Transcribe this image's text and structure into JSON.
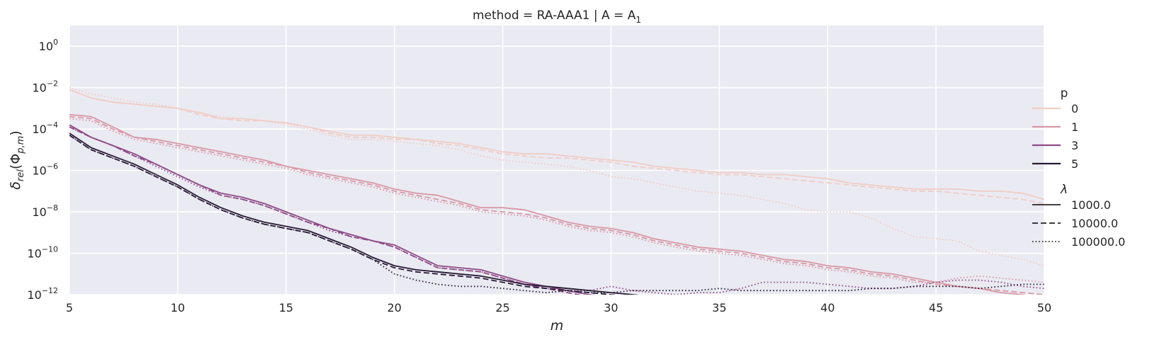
{
  "title": "method = RA-AAA1 | A = A",
  "title_sub": "1",
  "chart_data": {
    "type": "line",
    "title": "method = RA-AAA1 | A = A₁",
    "xlabel": "m",
    "ylabel": "δ_rel(Φ_{p,m})",
    "xlim": [
      5,
      50
    ],
    "ylim_log10": [
      -12,
      1
    ],
    "yscale": "log",
    "grid": true,
    "background": "#eaeaf2",
    "x_ticks": [
      5,
      10,
      15,
      20,
      25,
      30,
      35,
      40,
      45,
      50
    ],
    "y_ticks_log10": [
      0,
      -2,
      -4,
      -6,
      -8,
      -10,
      -12
    ],
    "legend_position": "right",
    "legend": {
      "hue_title": "p",
      "hue_levels": [
        {
          "label": "0",
          "color": "#f0cdc6"
        },
        {
          "label": "1",
          "color": "#d898a5"
        },
        {
          "label": "3",
          "color": "#8d4a85"
        },
        {
          "label": "5",
          "color": "#271b35"
        }
      ],
      "style_title": "λ",
      "style_levels": [
        {
          "label": "1000.0",
          "dash": "solid"
        },
        {
          "label": "10000.0",
          "dash": "dashed"
        },
        {
          "label": "100000.0",
          "dash": "dotted"
        }
      ]
    },
    "x": [
      5,
      6,
      7,
      8,
      9,
      10,
      11,
      12,
      13,
      14,
      15,
      16,
      17,
      18,
      19,
      20,
      21,
      22,
      23,
      24,
      25,
      26,
      27,
      28,
      29,
      30,
      31,
      32,
      33,
      34,
      35,
      36,
      37,
      38,
      39,
      40,
      41,
      42,
      43,
      44,
      45,
      46,
      47,
      48,
      49,
      50
    ],
    "series": [
      {
        "p": "0",
        "lambda": "1000.0",
        "log10_values": [
          -2.1,
          -2.5,
          -2.7,
          -2.8,
          -2.9,
          -3.0,
          -3.2,
          -3.5,
          -3.5,
          -3.6,
          -3.7,
          -3.9,
          -4.1,
          -4.3,
          -4.3,
          -4.4,
          -4.5,
          -4.6,
          -4.7,
          -4.9,
          -5.1,
          -5.2,
          -5.2,
          -5.3,
          -5.4,
          -5.5,
          -5.6,
          -5.8,
          -5.9,
          -6.0,
          -6.1,
          -6.1,
          -6.2,
          -6.2,
          -6.3,
          -6.4,
          -6.6,
          -6.7,
          -6.8,
          -6.9,
          -6.9,
          -6.9,
          -7.0,
          -7.0,
          -7.1,
          -7.4
        ]
      },
      {
        "p": "0",
        "lambda": "10000.0",
        "log10_values": [
          -2.1,
          -2.5,
          -2.7,
          -2.8,
          -2.9,
          -3.0,
          -3.3,
          -3.5,
          -3.6,
          -3.6,
          -3.7,
          -3.9,
          -4.2,
          -4.4,
          -4.4,
          -4.5,
          -4.5,
          -4.7,
          -4.8,
          -5.0,
          -5.2,
          -5.3,
          -5.4,
          -5.4,
          -5.5,
          -5.6,
          -5.8,
          -5.9,
          -6.0,
          -6.1,
          -6.2,
          -6.2,
          -6.3,
          -6.4,
          -6.5,
          -6.6,
          -6.7,
          -6.8,
          -6.9,
          -7.0,
          -7.0,
          -7.1,
          -7.2,
          -7.3,
          -7.4,
          -7.6
        ]
      },
      {
        "p": "0",
        "lambda": "100000.0",
        "log10_values": [
          -2.0,
          -2.3,
          -2.5,
          -2.7,
          -2.8,
          -3.0,
          -3.2,
          -3.4,
          -3.5,
          -3.6,
          -3.8,
          -4.0,
          -4.3,
          -4.5,
          -4.5,
          -4.6,
          -4.7,
          -4.8,
          -5.0,
          -5.3,
          -5.5,
          -5.6,
          -5.7,
          -5.8,
          -6.0,
          -6.3,
          -6.4,
          -6.6,
          -6.8,
          -7.0,
          -7.1,
          -7.2,
          -7.4,
          -7.6,
          -7.9,
          -8.0,
          -8.0,
          -8.3,
          -8.8,
          -9.2,
          -9.3,
          -9.4,
          -9.9,
          -10.1,
          -10.3,
          -10.6
        ]
      },
      {
        "p": "1",
        "lambda": "1000.0",
        "log10_values": [
          -3.3,
          -3.4,
          -3.9,
          -4.4,
          -4.5,
          -4.7,
          -4.9,
          -5.1,
          -5.3,
          -5.5,
          -5.8,
          -6.0,
          -6.2,
          -6.4,
          -6.6,
          -6.9,
          -7.1,
          -7.2,
          -7.5,
          -7.8,
          -7.8,
          -7.9,
          -8.2,
          -8.5,
          -8.7,
          -8.8,
          -9.0,
          -9.3,
          -9.5,
          -9.7,
          -9.8,
          -9.9,
          -10.1,
          -10.3,
          -10.4,
          -10.6,
          -10.7,
          -10.9,
          -11.0,
          -11.2,
          -11.4,
          -11.6,
          -11.7,
          -11.9,
          -12.0,
          -12.2
        ]
      },
      {
        "p": "1",
        "lambda": "10000.0",
        "log10_values": [
          -3.4,
          -3.5,
          -4.0,
          -4.4,
          -4.6,
          -4.8,
          -5.0,
          -5.2,
          -5.4,
          -5.6,
          -5.8,
          -6.1,
          -6.3,
          -6.5,
          -6.7,
          -7.0,
          -7.2,
          -7.4,
          -7.6,
          -7.9,
          -8.0,
          -8.1,
          -8.3,
          -8.6,
          -8.8,
          -8.9,
          -9.1,
          -9.4,
          -9.6,
          -9.8,
          -9.9,
          -10.0,
          -10.2,
          -10.4,
          -10.5,
          -10.7,
          -10.8,
          -11.0,
          -11.1,
          -11.3,
          -11.5,
          -11.6,
          -11.7,
          -11.8,
          -11.9,
          -12.0
        ]
      },
      {
        "p": "1",
        "lambda": "100000.0",
        "log10_values": [
          -3.5,
          -3.6,
          -4.1,
          -4.5,
          -4.7,
          -4.9,
          -5.1,
          -5.3,
          -5.5,
          -5.7,
          -5.9,
          -6.2,
          -6.4,
          -6.6,
          -6.8,
          -7.1,
          -7.3,
          -7.5,
          -7.7,
          -8.0,
          -8.1,
          -8.2,
          -8.4,
          -8.7,
          -8.9,
          -9.0,
          -9.2,
          -9.5,
          -9.7,
          -9.9,
          -10.0,
          -10.1,
          -10.3,
          -10.5,
          -10.6,
          -10.8,
          -10.9,
          -11.1,
          -11.2,
          -11.4,
          -11.4,
          -11.2,
          -11.1,
          -11.2,
          -11.3,
          -11.4
        ]
      },
      {
        "p": "3",
        "lambda": "1000.0",
        "log10_values": [
          -3.8,
          -4.4,
          -4.8,
          -5.2,
          -5.7,
          -6.2,
          -6.7,
          -7.1,
          -7.3,
          -7.6,
          -8.0,
          -8.4,
          -8.8,
          -9.1,
          -9.4,
          -9.6,
          -10.1,
          -10.6,
          -10.7,
          -10.8,
          -11.1,
          -11.4,
          -11.6,
          -11.8,
          -12.0,
          -12.1,
          -12.2,
          -12.2,
          -12.2,
          -12.2,
          -12.2,
          -12.2,
          -12.2,
          -12.2,
          -12.2,
          -12.2,
          -12.2,
          -12.2,
          -12.2,
          -12.2,
          -12.2,
          -12.2,
          -12.2,
          -12.2,
          -12.2,
          -12.2
        ]
      },
      {
        "p": "3",
        "lambda": "10000.0",
        "log10_values": [
          -3.9,
          -4.4,
          -4.8,
          -5.3,
          -5.7,
          -6.2,
          -6.7,
          -7.2,
          -7.4,
          -7.7,
          -8.1,
          -8.5,
          -8.8,
          -9.2,
          -9.4,
          -9.7,
          -10.2,
          -10.7,
          -10.8,
          -10.9,
          -11.2,
          -11.5,
          -11.7,
          -11.9,
          -12.1,
          -12.2,
          -12.2,
          -12.2,
          -12.2,
          -12.2,
          -12.2,
          -12.2,
          -12.2,
          -12.2,
          -12.2,
          -12.2,
          -12.2,
          -12.2,
          -12.2,
          -12.2,
          -12.2,
          -12.2,
          -12.2,
          -12.2,
          -12.2,
          -12.2
        ]
      },
      {
        "p": "3",
        "lambda": "100000.0",
        "log10_values": [
          -3.9,
          -4.4,
          -4.8,
          -5.3,
          -5.8,
          -6.3,
          -6.8,
          -7.2,
          -7.4,
          -7.7,
          -8.1,
          -8.5,
          -8.9,
          -9.2,
          -9.4,
          -9.7,
          -10.2,
          -10.7,
          -10.8,
          -10.9,
          -11.2,
          -11.5,
          -11.7,
          -11.8,
          -11.8,
          -11.6,
          -11.8,
          -11.9,
          -12.0,
          -11.9,
          -11.9,
          -11.7,
          -11.4,
          -11.4,
          -11.4,
          -11.5,
          -11.6,
          -11.7,
          -11.7,
          -11.6,
          -11.4,
          -11.3,
          -11.3,
          -11.4,
          -11.6,
          -11.7
        ]
      },
      {
        "p": "5",
        "lambda": "1000.0",
        "log10_values": [
          -4.2,
          -4.9,
          -5.3,
          -5.7,
          -6.2,
          -6.7,
          -7.3,
          -7.8,
          -8.2,
          -8.5,
          -8.7,
          -8.9,
          -9.3,
          -9.7,
          -10.2,
          -10.6,
          -10.8,
          -10.9,
          -11.0,
          -11.1,
          -11.3,
          -11.5,
          -11.6,
          -11.7,
          -11.8,
          -11.9,
          -12.0,
          -12.1,
          -12.2,
          -12.2,
          -12.2,
          -12.2,
          -12.2,
          -12.2,
          -12.2,
          -12.2,
          -12.2,
          -12.2,
          -12.2,
          -12.2,
          -12.2,
          -12.2,
          -12.2,
          -12.2,
          -12.2,
          -12.2
        ]
      },
      {
        "p": "5",
        "lambda": "10000.0",
        "log10_values": [
          -4.3,
          -5.0,
          -5.4,
          -5.8,
          -6.3,
          -6.8,
          -7.4,
          -7.9,
          -8.3,
          -8.6,
          -8.8,
          -9.0,
          -9.4,
          -9.8,
          -10.3,
          -10.7,
          -10.9,
          -11.0,
          -11.1,
          -11.2,
          -11.4,
          -11.6,
          -11.7,
          -11.8,
          -11.9,
          -12.0,
          -12.1,
          -12.2,
          -12.2,
          -12.2,
          -12.2,
          -12.2,
          -12.2,
          -12.2,
          -12.2,
          -12.2,
          -12.2,
          -12.2,
          -12.2,
          -12.2,
          -12.2,
          -12.2,
          -12.2,
          -12.2,
          -12.2,
          -12.2
        ]
      },
      {
        "p": "5",
        "lambda": "100000.0",
        "log10_values": [
          -4.3,
          -5.0,
          -5.4,
          -5.8,
          -6.3,
          -6.8,
          -7.4,
          -7.9,
          -8.3,
          -8.6,
          -8.8,
          -9.0,
          -9.4,
          -9.8,
          -10.3,
          -11.0,
          -11.3,
          -11.5,
          -11.6,
          -11.6,
          -11.7,
          -11.8,
          -11.9,
          -11.8,
          -11.9,
          -11.9,
          -11.8,
          -11.8,
          -11.8,
          -11.8,
          -11.7,
          -11.8,
          -11.8,
          -11.8,
          -11.8,
          -11.8,
          -11.8,
          -11.7,
          -11.7,
          -11.6,
          -11.6,
          -11.6,
          -11.7,
          -11.6,
          -11.5,
          -11.5
        ]
      }
    ]
  }
}
